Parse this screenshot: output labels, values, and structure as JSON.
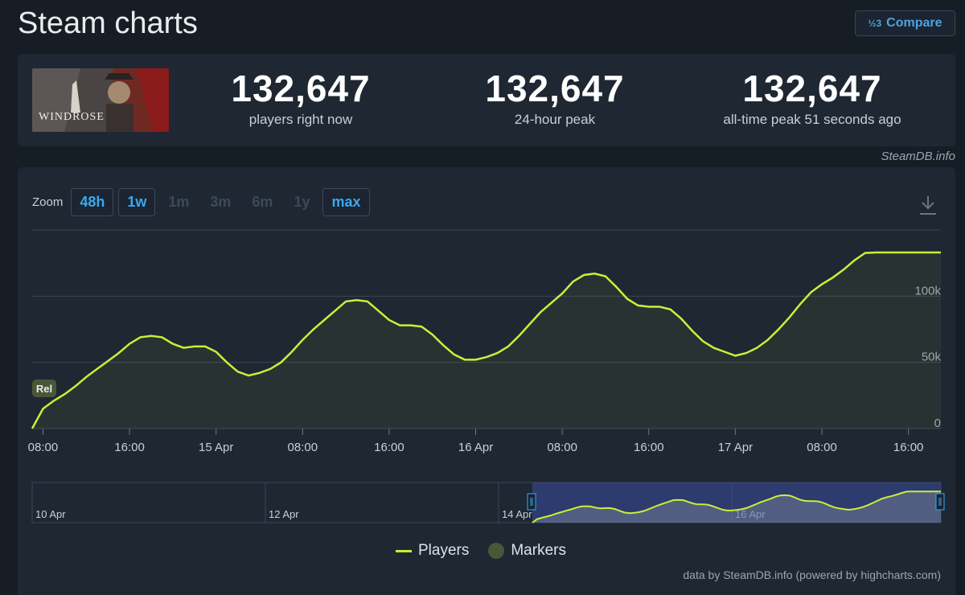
{
  "header": {
    "title": "Steam charts",
    "compare_label": "Compare",
    "compare_icon": "fraction-icon",
    "compare_icon_text": "½3"
  },
  "stats": {
    "game_name": "WINDROSE",
    "current": {
      "value": "132,647",
      "label": "players right now"
    },
    "peak24": {
      "value": "132,647",
      "label": "24-hour peak"
    },
    "alltime": {
      "value": "132,647",
      "label": "all-time peak 51 seconds ago"
    }
  },
  "credit": "SteamDB.info",
  "zoom": {
    "label": "Zoom",
    "options": [
      {
        "label": "48h",
        "active": true
      },
      {
        "label": "1w",
        "active": true
      },
      {
        "label": "1m",
        "active": false
      },
      {
        "label": "3m",
        "active": false
      },
      {
        "label": "6m",
        "active": false
      },
      {
        "label": "1y",
        "active": false
      },
      {
        "label": "max",
        "active": true
      }
    ]
  },
  "marker_label": "Rel",
  "legend": {
    "players": "Players",
    "markers": "Markers"
  },
  "footer": "data by SteamDB.info (powered by highcharts.com)",
  "colors": {
    "line": "#c8f03a",
    "accent": "#3aa8f0",
    "marker": "#4a5638"
  },
  "chart_data": {
    "type": "line",
    "series": [
      {
        "name": "Players",
        "x_hours": [
          0,
          1,
          2,
          3,
          4,
          5,
          6,
          7,
          8,
          9,
          10,
          11,
          12,
          13,
          14,
          15,
          16,
          17,
          18,
          19,
          20,
          21,
          22,
          23,
          24,
          25,
          26,
          27,
          28,
          29,
          30,
          31,
          32,
          33,
          34,
          35,
          36,
          37,
          38,
          39,
          40,
          41,
          42,
          43,
          44,
          45,
          46,
          47,
          48,
          49,
          50,
          51,
          52,
          53,
          54,
          55,
          56,
          57,
          58,
          59,
          60,
          61,
          62,
          63,
          64,
          65,
          66,
          67,
          68,
          69,
          70,
          71,
          72,
          73,
          74,
          75,
          76,
          77,
          78,
          79,
          80,
          81,
          82,
          83,
          84
        ],
        "values": [
          0,
          15000,
          21000,
          26000,
          32000,
          39000,
          45000,
          51000,
          57000,
          64000,
          69000,
          70000,
          69000,
          64000,
          61000,
          62000,
          62000,
          58000,
          50000,
          43000,
          40000,
          42000,
          45000,
          50000,
          58000,
          67000,
          75000,
          82000,
          89000,
          96000,
          97000,
          96000,
          89000,
          82000,
          78000,
          78000,
          77000,
          71000,
          63000,
          56000,
          52000,
          52000,
          54000,
          57000,
          62000,
          70000,
          79000,
          88000,
          95000,
          102000,
          111000,
          116000,
          117000,
          115000,
          107000,
          98000,
          93000,
          92000,
          92000,
          90000,
          83000,
          74000,
          66000,
          61000,
          58000,
          55000,
          57000,
          61000,
          67000,
          75000,
          84000,
          94000,
          103000,
          109000,
          114000,
          120000,
          127000,
          132647,
          133000,
          133000,
          133000,
          133000,
          133000,
          133000,
          133000
        ]
      }
    ],
    "x_ticks": [
      "08:00",
      "16:00",
      "15 Apr",
      "08:00",
      "16:00",
      "16 Apr",
      "08:00",
      "16:00",
      "17 Apr",
      "08:00",
      "16:00"
    ],
    "y_ticks": [
      "0",
      "50k",
      "100k"
    ],
    "ylim": [
      0,
      150000
    ],
    "navigator_ticks": [
      "10 Apr",
      "12 Apr",
      "14 Apr",
      "16 Apr"
    ],
    "legend": [
      "Players",
      "Markers"
    ],
    "markers": [
      {
        "label": "Rel",
        "x_hour": 1
      }
    ]
  }
}
